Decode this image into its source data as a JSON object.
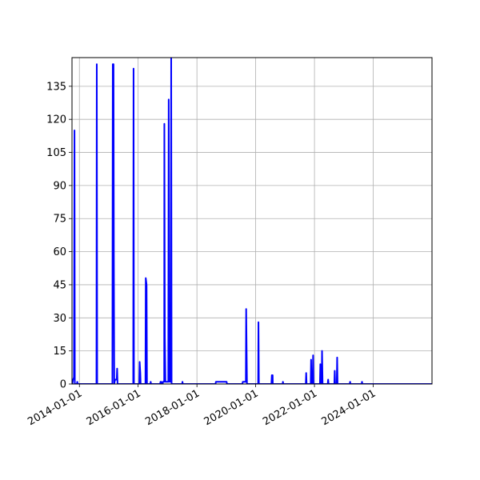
{
  "chart_data": {
    "type": "line",
    "title": "",
    "xlabel": "",
    "ylabel": "",
    "grid": true,
    "legend": "none",
    "line_color": "#0000ff",
    "grid_color": "#b0b0b0",
    "xlim": [
      "2013-10-01",
      "2026-01-01"
    ],
    "ylim": [
      0,
      148
    ],
    "x_ticks": [
      "2014-01-01",
      "2016-01-01",
      "2018-01-01",
      "2020-01-01",
      "2022-01-01",
      "2024-01-01"
    ],
    "y_ticks": [
      0,
      15,
      30,
      45,
      60,
      75,
      90,
      105,
      120,
      135
    ],
    "series": [
      {
        "points": [
          [
            "2013-10-05",
            0
          ],
          [
            "2013-10-15",
            2
          ],
          [
            "2013-10-25",
            3
          ],
          [
            "2013-11-01",
            115
          ],
          [
            "2013-11-05",
            0
          ],
          [
            "2013-12-01",
            0
          ],
          [
            "2013-12-05",
            1
          ],
          [
            "2013-12-12",
            0
          ],
          [
            "2014-08-01",
            0
          ],
          [
            "2014-08-05",
            145
          ],
          [
            "2014-08-10",
            0
          ],
          [
            "2015-02-15",
            0
          ],
          [
            "2015-02-20",
            145
          ],
          [
            "2015-03-01",
            145
          ],
          [
            "2015-03-05",
            59
          ],
          [
            "2015-03-10",
            0
          ],
          [
            "2015-03-20",
            2
          ],
          [
            "2015-04-10",
            2
          ],
          [
            "2015-04-15",
            7
          ],
          [
            "2015-04-20",
            0
          ],
          [
            "2015-11-01",
            0
          ],
          [
            "2015-11-05",
            143
          ],
          [
            "2015-11-10",
            0
          ],
          [
            "2016-01-15",
            0
          ],
          [
            "2016-01-20",
            10
          ],
          [
            "2016-01-28",
            5
          ],
          [
            "2016-02-01",
            0
          ],
          [
            "2016-04-01",
            0
          ],
          [
            "2016-04-05",
            48
          ],
          [
            "2016-04-15",
            45
          ],
          [
            "2016-04-20",
            0
          ],
          [
            "2016-06-01",
            0
          ],
          [
            "2016-06-05",
            1
          ],
          [
            "2016-06-10",
            0
          ],
          [
            "2016-10-01",
            0
          ],
          [
            "2016-10-05",
            1
          ],
          [
            "2016-10-15",
            1
          ],
          [
            "2016-10-20",
            0
          ],
          [
            "2016-11-01",
            0
          ],
          [
            "2016-11-05",
            1
          ],
          [
            "2016-11-20",
            1
          ],
          [
            "2016-11-22",
            118
          ],
          [
            "2016-11-28",
            21
          ],
          [
            "2016-12-05",
            1
          ],
          [
            "2017-01-10",
            1
          ],
          [
            "2017-01-15",
            129
          ],
          [
            "2017-01-25",
            1
          ],
          [
            "2017-02-01",
            7
          ],
          [
            "2017-02-10",
            1
          ],
          [
            "2017-02-15",
            148
          ],
          [
            "2017-02-20",
            0
          ],
          [
            "2017-07-01",
            0
          ],
          [
            "2017-07-05",
            1
          ],
          [
            "2017-07-10",
            0
          ],
          [
            "2018-08-20",
            0
          ],
          [
            "2018-08-25",
            1
          ],
          [
            "2019-01-05",
            1
          ],
          [
            "2019-01-10",
            0
          ],
          [
            "2019-07-20",
            0
          ],
          [
            "2019-07-25",
            1
          ],
          [
            "2019-09-01",
            1
          ],
          [
            "2019-09-05",
            34
          ],
          [
            "2019-09-15",
            0
          ],
          [
            "2020-01-01",
            0
          ],
          [
            "2020-01-10",
            0
          ],
          [
            "2020-02-01",
            0
          ],
          [
            "2020-02-05",
            28
          ],
          [
            "2020-02-10",
            0
          ],
          [
            "2020-07-15",
            0
          ],
          [
            "2020-07-20",
            4
          ],
          [
            "2020-07-30",
            4
          ],
          [
            "2020-08-01",
            0
          ],
          [
            "2020-12-01",
            0
          ],
          [
            "2020-12-05",
            1
          ],
          [
            "2020-12-10",
            0
          ],
          [
            "2021-09-15",
            0
          ],
          [
            "2021-09-20",
            5
          ],
          [
            "2021-09-25",
            0
          ],
          [
            "2021-11-15",
            0
          ],
          [
            "2021-11-20",
            11
          ],
          [
            "2021-11-25",
            0
          ],
          [
            "2021-12-10",
            0
          ],
          [
            "2021-12-15",
            13
          ],
          [
            "2021-12-20",
            0
          ],
          [
            "2022-03-10",
            0
          ],
          [
            "2022-03-15",
            9
          ],
          [
            "2022-03-20",
            0
          ],
          [
            "2022-04-01",
            0
          ],
          [
            "2022-04-05",
            15
          ],
          [
            "2022-04-12",
            0
          ],
          [
            "2022-06-15",
            0
          ],
          [
            "2022-06-20",
            2
          ],
          [
            "2022-06-25",
            0
          ],
          [
            "2022-09-05",
            0
          ],
          [
            "2022-09-10",
            6
          ],
          [
            "2022-09-15",
            0
          ],
          [
            "2022-10-05",
            0
          ],
          [
            "2022-10-10",
            12
          ],
          [
            "2022-10-15",
            0
          ],
          [
            "2023-03-15",
            0
          ],
          [
            "2023-03-20",
            1
          ],
          [
            "2023-03-25",
            0
          ],
          [
            "2023-08-10",
            0
          ],
          [
            "2023-08-15",
            1
          ],
          [
            "2023-08-20",
            0
          ],
          [
            "2025-12-31",
            0
          ]
        ]
      }
    ]
  }
}
